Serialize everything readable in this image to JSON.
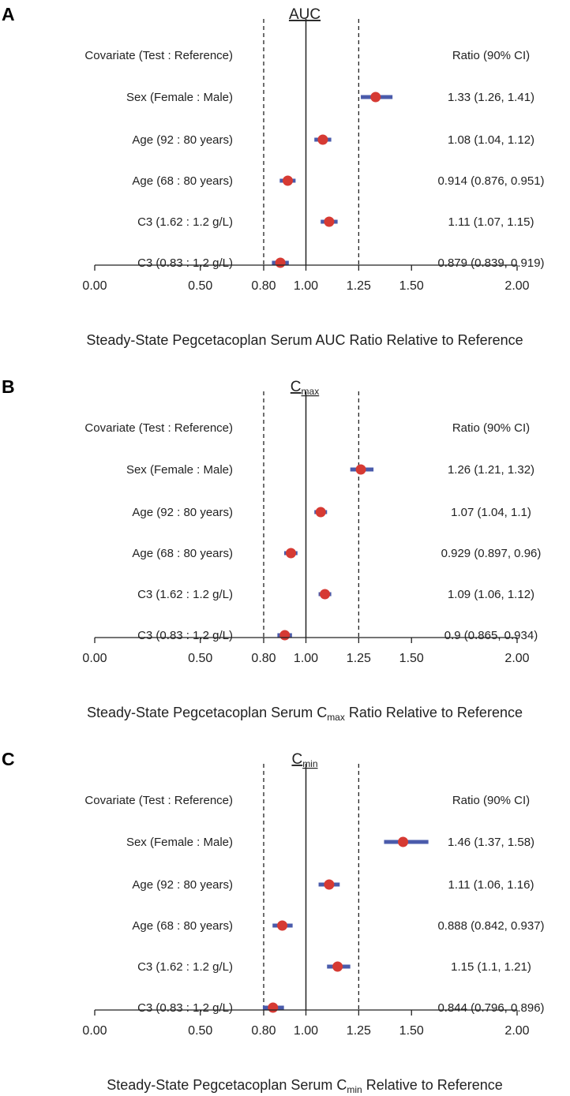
{
  "chart_data": [
    {
      "type": "forest",
      "panel_label": "A",
      "title": "AUC",
      "title_sub": "",
      "col_header_left": "Covariate (Test : Reference)",
      "col_header_right": "Ratio (90% CI)",
      "xlabel_pre": "Steady-State Pegcetacoplan Serum AUC Ratio Relative to Reference",
      "xlabel_sub": "",
      "xlabel_post": "",
      "xticks": [
        0,
        0.5,
        0.8,
        1.0,
        1.25,
        1.5,
        2.0
      ],
      "xtick_labels": [
        "0.00",
        "0.50",
        "0.80",
        "1.00",
        "1.25",
        "1.50",
        "2.00"
      ],
      "xlim": [
        0,
        2
      ],
      "reference_line": 1.0,
      "bounds": [
        0.8,
        1.25
      ],
      "rows": [
        {
          "label": "Sex (Female : Male)",
          "ratio": 1.33,
          "lo": 1.26,
          "hi": 1.41,
          "text": "1.33 (1.26, 1.41)"
        },
        {
          "label": "Age (92 : 80 years)",
          "ratio": 1.08,
          "lo": 1.04,
          "hi": 1.12,
          "text": "1.08 (1.04, 1.12)"
        },
        {
          "label": "Age (68 : 80 years)",
          "ratio": 0.914,
          "lo": 0.876,
          "hi": 0.951,
          "text": "0.914 (0.876, 0.951)"
        },
        {
          "label": "C3 (1.62 : 1.2 g/L)",
          "ratio": 1.11,
          "lo": 1.07,
          "hi": 1.15,
          "text": "1.11 (1.07, 1.15)"
        },
        {
          "label": "C3 (0.83 : 1.2 g/L)",
          "ratio": 0.879,
          "lo": 0.839,
          "hi": 0.919,
          "text": "0.879 (0.839, 0.919)"
        }
      ]
    },
    {
      "type": "forest",
      "panel_label": "B",
      "title": "C",
      "title_sub": "max",
      "col_header_left": "Covariate (Test : Reference)",
      "col_header_right": "Ratio (90% CI)",
      "xlabel_pre": "Steady-State Pegcetacoplan Serum C",
      "xlabel_sub": "max",
      "xlabel_post": " Ratio Relative to Reference",
      "xticks": [
        0,
        0.5,
        0.8,
        1.0,
        1.25,
        1.5,
        2.0
      ],
      "xtick_labels": [
        "0.00",
        "0.50",
        "0.80",
        "1.00",
        "1.25",
        "1.50",
        "2.00"
      ],
      "xlim": [
        0,
        2
      ],
      "reference_line": 1.0,
      "bounds": [
        0.8,
        1.25
      ],
      "rows": [
        {
          "label": "Sex (Female : Male)",
          "ratio": 1.26,
          "lo": 1.21,
          "hi": 1.32,
          "text": "1.26 (1.21, 1.32)"
        },
        {
          "label": "Age (92 : 80 years)",
          "ratio": 1.07,
          "lo": 1.04,
          "hi": 1.1,
          "text": "1.07 (1.04, 1.1)"
        },
        {
          "label": "Age (68 : 80 years)",
          "ratio": 0.929,
          "lo": 0.897,
          "hi": 0.96,
          "text": "0.929 (0.897, 0.96)"
        },
        {
          "label": "C3 (1.62 : 1.2 g/L)",
          "ratio": 1.09,
          "lo": 1.06,
          "hi": 1.12,
          "text": "1.09 (1.06, 1.12)"
        },
        {
          "label": "C3 (0.83 : 1.2 g/L)",
          "ratio": 0.9,
          "lo": 0.865,
          "hi": 0.934,
          "text": "0.9 (0.865, 0.934)"
        }
      ]
    },
    {
      "type": "forest",
      "panel_label": "C",
      "title": "C",
      "title_sub": "min",
      "col_header_left": "Covariate (Test : Reference)",
      "col_header_right": "Ratio (90% CI)",
      "xlabel_pre": "Steady-State Pegcetacoplan Serum C",
      "xlabel_sub": "min",
      "xlabel_post": " Relative to Reference",
      "xticks": [
        0,
        0.5,
        0.8,
        1.0,
        1.25,
        1.5,
        2.0
      ],
      "xtick_labels": [
        "0.00",
        "0.50",
        "0.80",
        "1.00",
        "1.25",
        "1.50",
        "2.00"
      ],
      "xlim": [
        0,
        2
      ],
      "reference_line": 1.0,
      "bounds": [
        0.8,
        1.25
      ],
      "rows": [
        {
          "label": "Sex (Female : Male)",
          "ratio": 1.46,
          "lo": 1.37,
          "hi": 1.58,
          "text": "1.46 (1.37, 1.58)"
        },
        {
          "label": "Age (92 : 80 years)",
          "ratio": 1.11,
          "lo": 1.06,
          "hi": 1.16,
          "text": "1.11 (1.06, 1.16)"
        },
        {
          "label": "Age (68 : 80 years)",
          "ratio": 0.888,
          "lo": 0.842,
          "hi": 0.937,
          "text": "0.888 (0.842, 0.937)"
        },
        {
          "label": "C3 (1.62 : 1.2 g/L)",
          "ratio": 1.15,
          "lo": 1.1,
          "hi": 1.21,
          "text": "1.15 (1.1, 1.21)"
        },
        {
          "label": "C3 (0.83 : 1.2 g/L)",
          "ratio": 0.844,
          "lo": 0.796,
          "hi": 0.896,
          "text": "0.844 (0.796, 0.896)"
        }
      ]
    }
  ],
  "colors": {
    "ci_bar": "#4a5bab",
    "point": "#d63a33",
    "axis": "#222222"
  }
}
